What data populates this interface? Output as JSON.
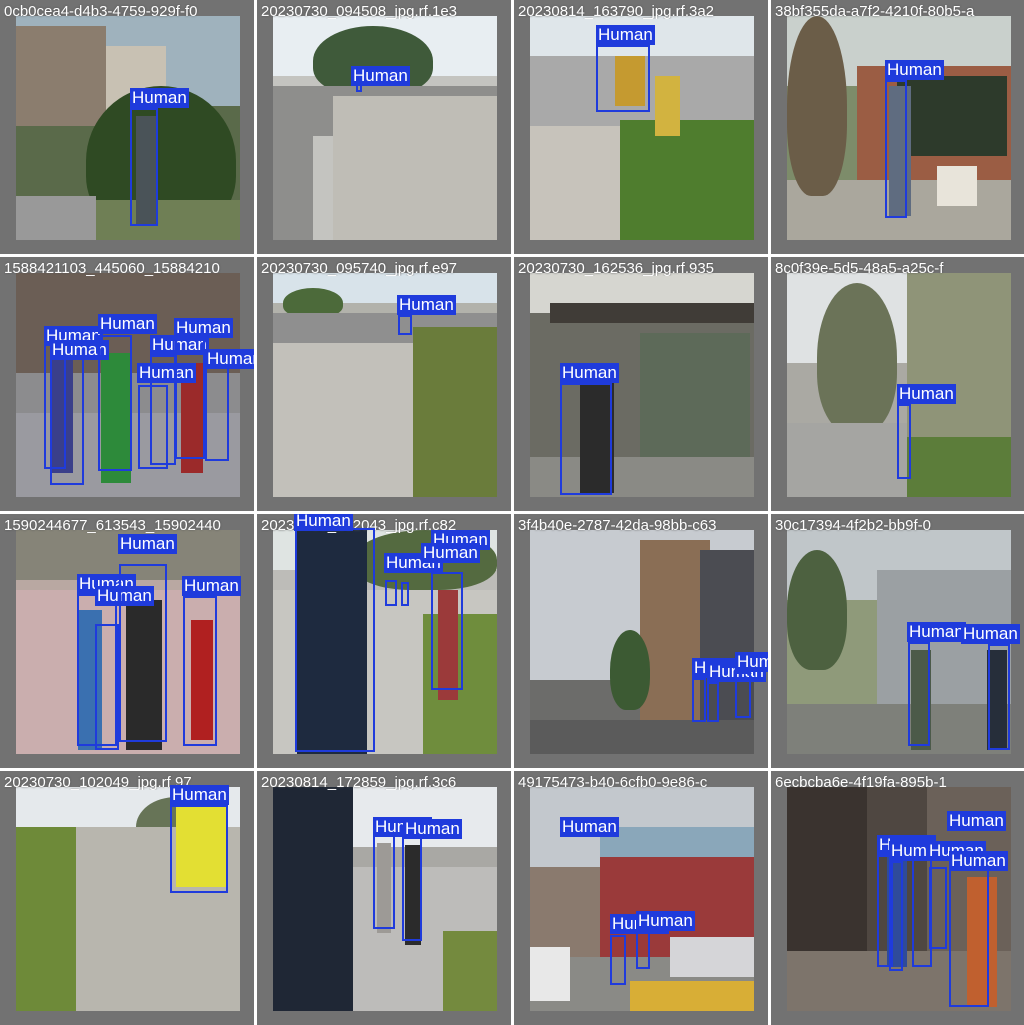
{
  "colors": {
    "box": "#1f3bdc",
    "label_text": "#ffffff",
    "tile_border": "#727272"
  },
  "tiles": [
    {
      "title": "0cb0cea4-d4b3-4759-929f-f0"
    },
    {
      "title": "20230730_094508_jpg.rf.1e3"
    },
    {
      "title": "20230814_163790_jpg.rf.3a2"
    },
    {
      "title": "38bf355da-a7f2-4210f-80b5-a"
    },
    {
      "title": "1588421103_445060_15884210"
    },
    {
      "title": "20230730_095740_jpg.rf.e97"
    },
    {
      "title": "20230730_162536_jpg.rf.935"
    },
    {
      "title": "8c0f39e-5d5-48a5-a25c-f"
    },
    {
      "title": "1590244677_613543_15902440"
    },
    {
      "title": "20230730_102043_jpg.rf.c82"
    },
    {
      "title": "3f4b40e-2787-42da-98bb-c63"
    },
    {
      "title": "30c17394-4f2b2-bb9f-0"
    },
    {
      "title": "20230730_102049_jpg.rf.97"
    },
    {
      "title": "20230814_172859_jpg.rf.3c6"
    },
    {
      "title": "49175473-b40-6cfb0-9e86-c"
    },
    {
      "title": "6ecbcba6e-4f19fa-895b-1"
    }
  ],
  "label": "Human"
}
